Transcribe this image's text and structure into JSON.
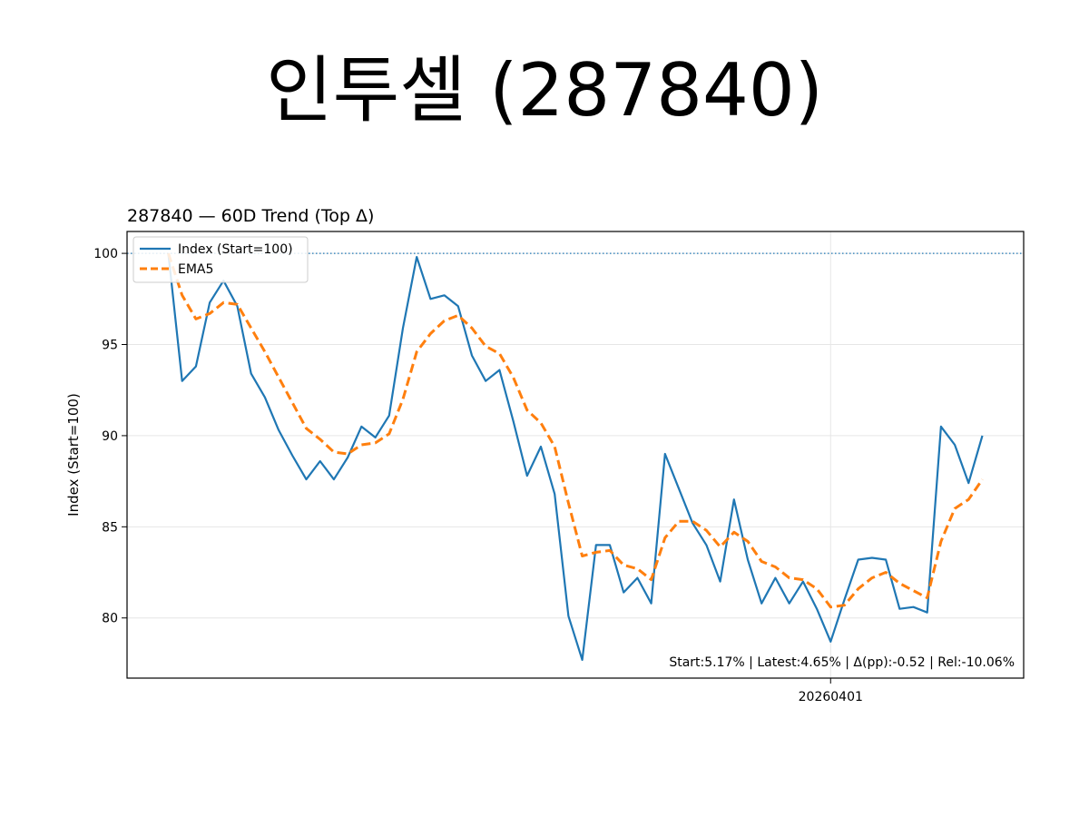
{
  "page": {
    "title": "인투셀 (287840)"
  },
  "colors": {
    "index": "#1f77b4",
    "ema": "#ff7f0e",
    "grid": "#e6e6e6",
    "reference": "#1f77b4"
  },
  "chart_data": {
    "type": "line",
    "title": "287840 — 60D Trend (Top Δ)",
    "xlabel": "",
    "ylabel": "Index (Start=100)",
    "ylim": [
      76.7,
      101.2
    ],
    "yticks": [
      80,
      85,
      90,
      95,
      100
    ],
    "xticks": [
      {
        "index": 48,
        "label": "20260401"
      }
    ],
    "reference_line": 100,
    "grid": true,
    "legend_position": "top-left",
    "annotation": "Start:5.17% | Latest:4.65% | Δ(pp):-0.52 | Rel:-10.06%",
    "series": [
      {
        "name": "Index (Start=100)",
        "style": "solid",
        "values": [
          100,
          93,
          93.8,
          97.3,
          98.5,
          97.1,
          93.4,
          92.1,
          90.3,
          88.9,
          87.6,
          88.6,
          87.6,
          88.8,
          90.5,
          89.9,
          91.1,
          95.9,
          99.8,
          97.5,
          97.7,
          97.1,
          94.4,
          93.0,
          93.6,
          90.8,
          87.8,
          89.4,
          86.8,
          80.1,
          77.7,
          84.0,
          84.0,
          81.4,
          82.2,
          80.8,
          89.0,
          87.1,
          85.2,
          84.0,
          82.0,
          86.5,
          83.2,
          80.8,
          82.2,
          80.8,
          82.0,
          80.5,
          78.7,
          81.0,
          83.2,
          83.3,
          83.2,
          80.5,
          80.6,
          80.3,
          90.5,
          89.5,
          87.4,
          90.0
        ]
      },
      {
        "name": "EMA5",
        "style": "dashed",
        "values": [
          100,
          97.7,
          96.4,
          96.7,
          97.3,
          97.2,
          95.9,
          94.6,
          93.2,
          91.8,
          90.4,
          89.8,
          89.1,
          89.0,
          89.5,
          89.6,
          90.1,
          92.0,
          94.6,
          95.6,
          96.3,
          96.6,
          95.9,
          94.9,
          94.5,
          93.2,
          91.4,
          90.7,
          89.4,
          86.3,
          83.4,
          83.6,
          83.7,
          82.9,
          82.7,
          82.1,
          84.4,
          85.3,
          85.3,
          84.8,
          83.9,
          84.7,
          84.2,
          83.1,
          82.8,
          82.2,
          82.1,
          81.6,
          80.6,
          80.7,
          81.6,
          82.2,
          82.5,
          81.9,
          81.5,
          81.1,
          84.2,
          86.0,
          86.5,
          87.6
        ]
      }
    ]
  }
}
